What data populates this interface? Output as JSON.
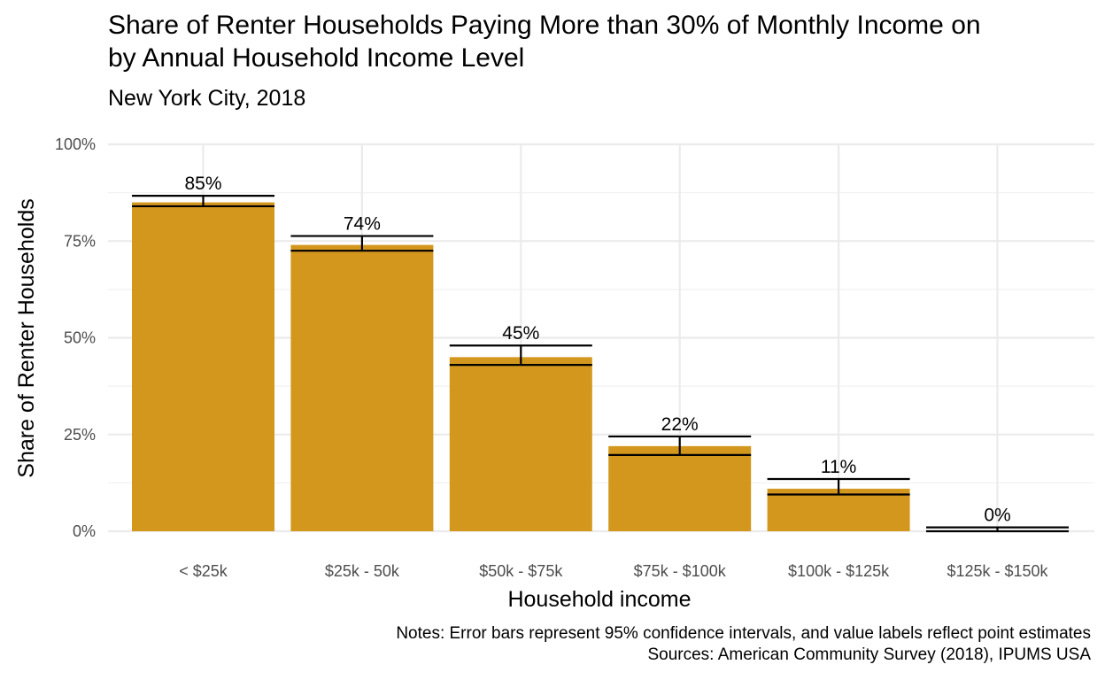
{
  "chart_data": {
    "type": "bar",
    "title_line1": "Share of Renter Households Paying More than 30% of Monthly Income on",
    "title_line2": "by Annual Household Income Level",
    "subtitle": "New York City, 2018",
    "xlabel": "Household income",
    "ylabel": "Share of Renter Households",
    "categories": [
      "< $25k",
      "$25k - 50k",
      "$50k - $75k",
      "$75k - $100k",
      "$100k - $125k",
      "$125k - $150k"
    ],
    "values": [
      0.85,
      0.74,
      0.45,
      0.22,
      0.11,
      0.0
    ],
    "value_labels": [
      "85%",
      "74%",
      "45%",
      "22%",
      "11%",
      "0%"
    ],
    "error_lower": [
      0.84,
      0.725,
      0.43,
      0.197,
      0.095,
      0.0
    ],
    "error_upper": [
      0.867,
      0.763,
      0.48,
      0.245,
      0.135,
      0.01
    ],
    "ylim": [
      0,
      1
    ],
    "yticks": [
      0,
      0.25,
      0.5,
      0.75,
      1.0
    ],
    "ytick_labels": [
      "0%",
      "25%",
      "50%",
      "75%",
      "100%"
    ],
    "grid": true,
    "bar_color": "#D4971E",
    "notes_line1": "Notes: Error bars represent 95% confidence intervals, and value labels reflect point estimates",
    "notes_line2": "Sources: American Community Survey (2018), IPUMS USA"
  }
}
